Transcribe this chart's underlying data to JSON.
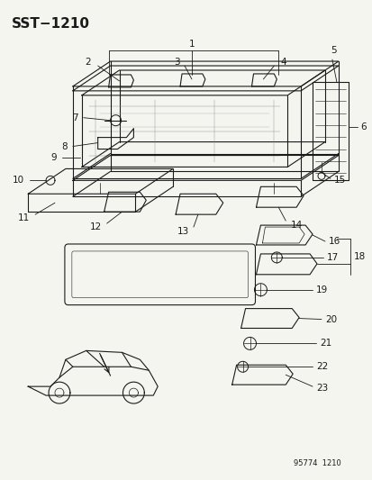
{
  "title": "SST−1210",
  "footer": "95774  1210",
  "bg_color": "#f5f5f0",
  "line_color": "#1a1a1a",
  "title_fontsize": 11,
  "label_fontsize": 7.5,
  "footer_fontsize": 6,
  "figsize": [
    4.14,
    5.33
  ],
  "dpi": 100
}
